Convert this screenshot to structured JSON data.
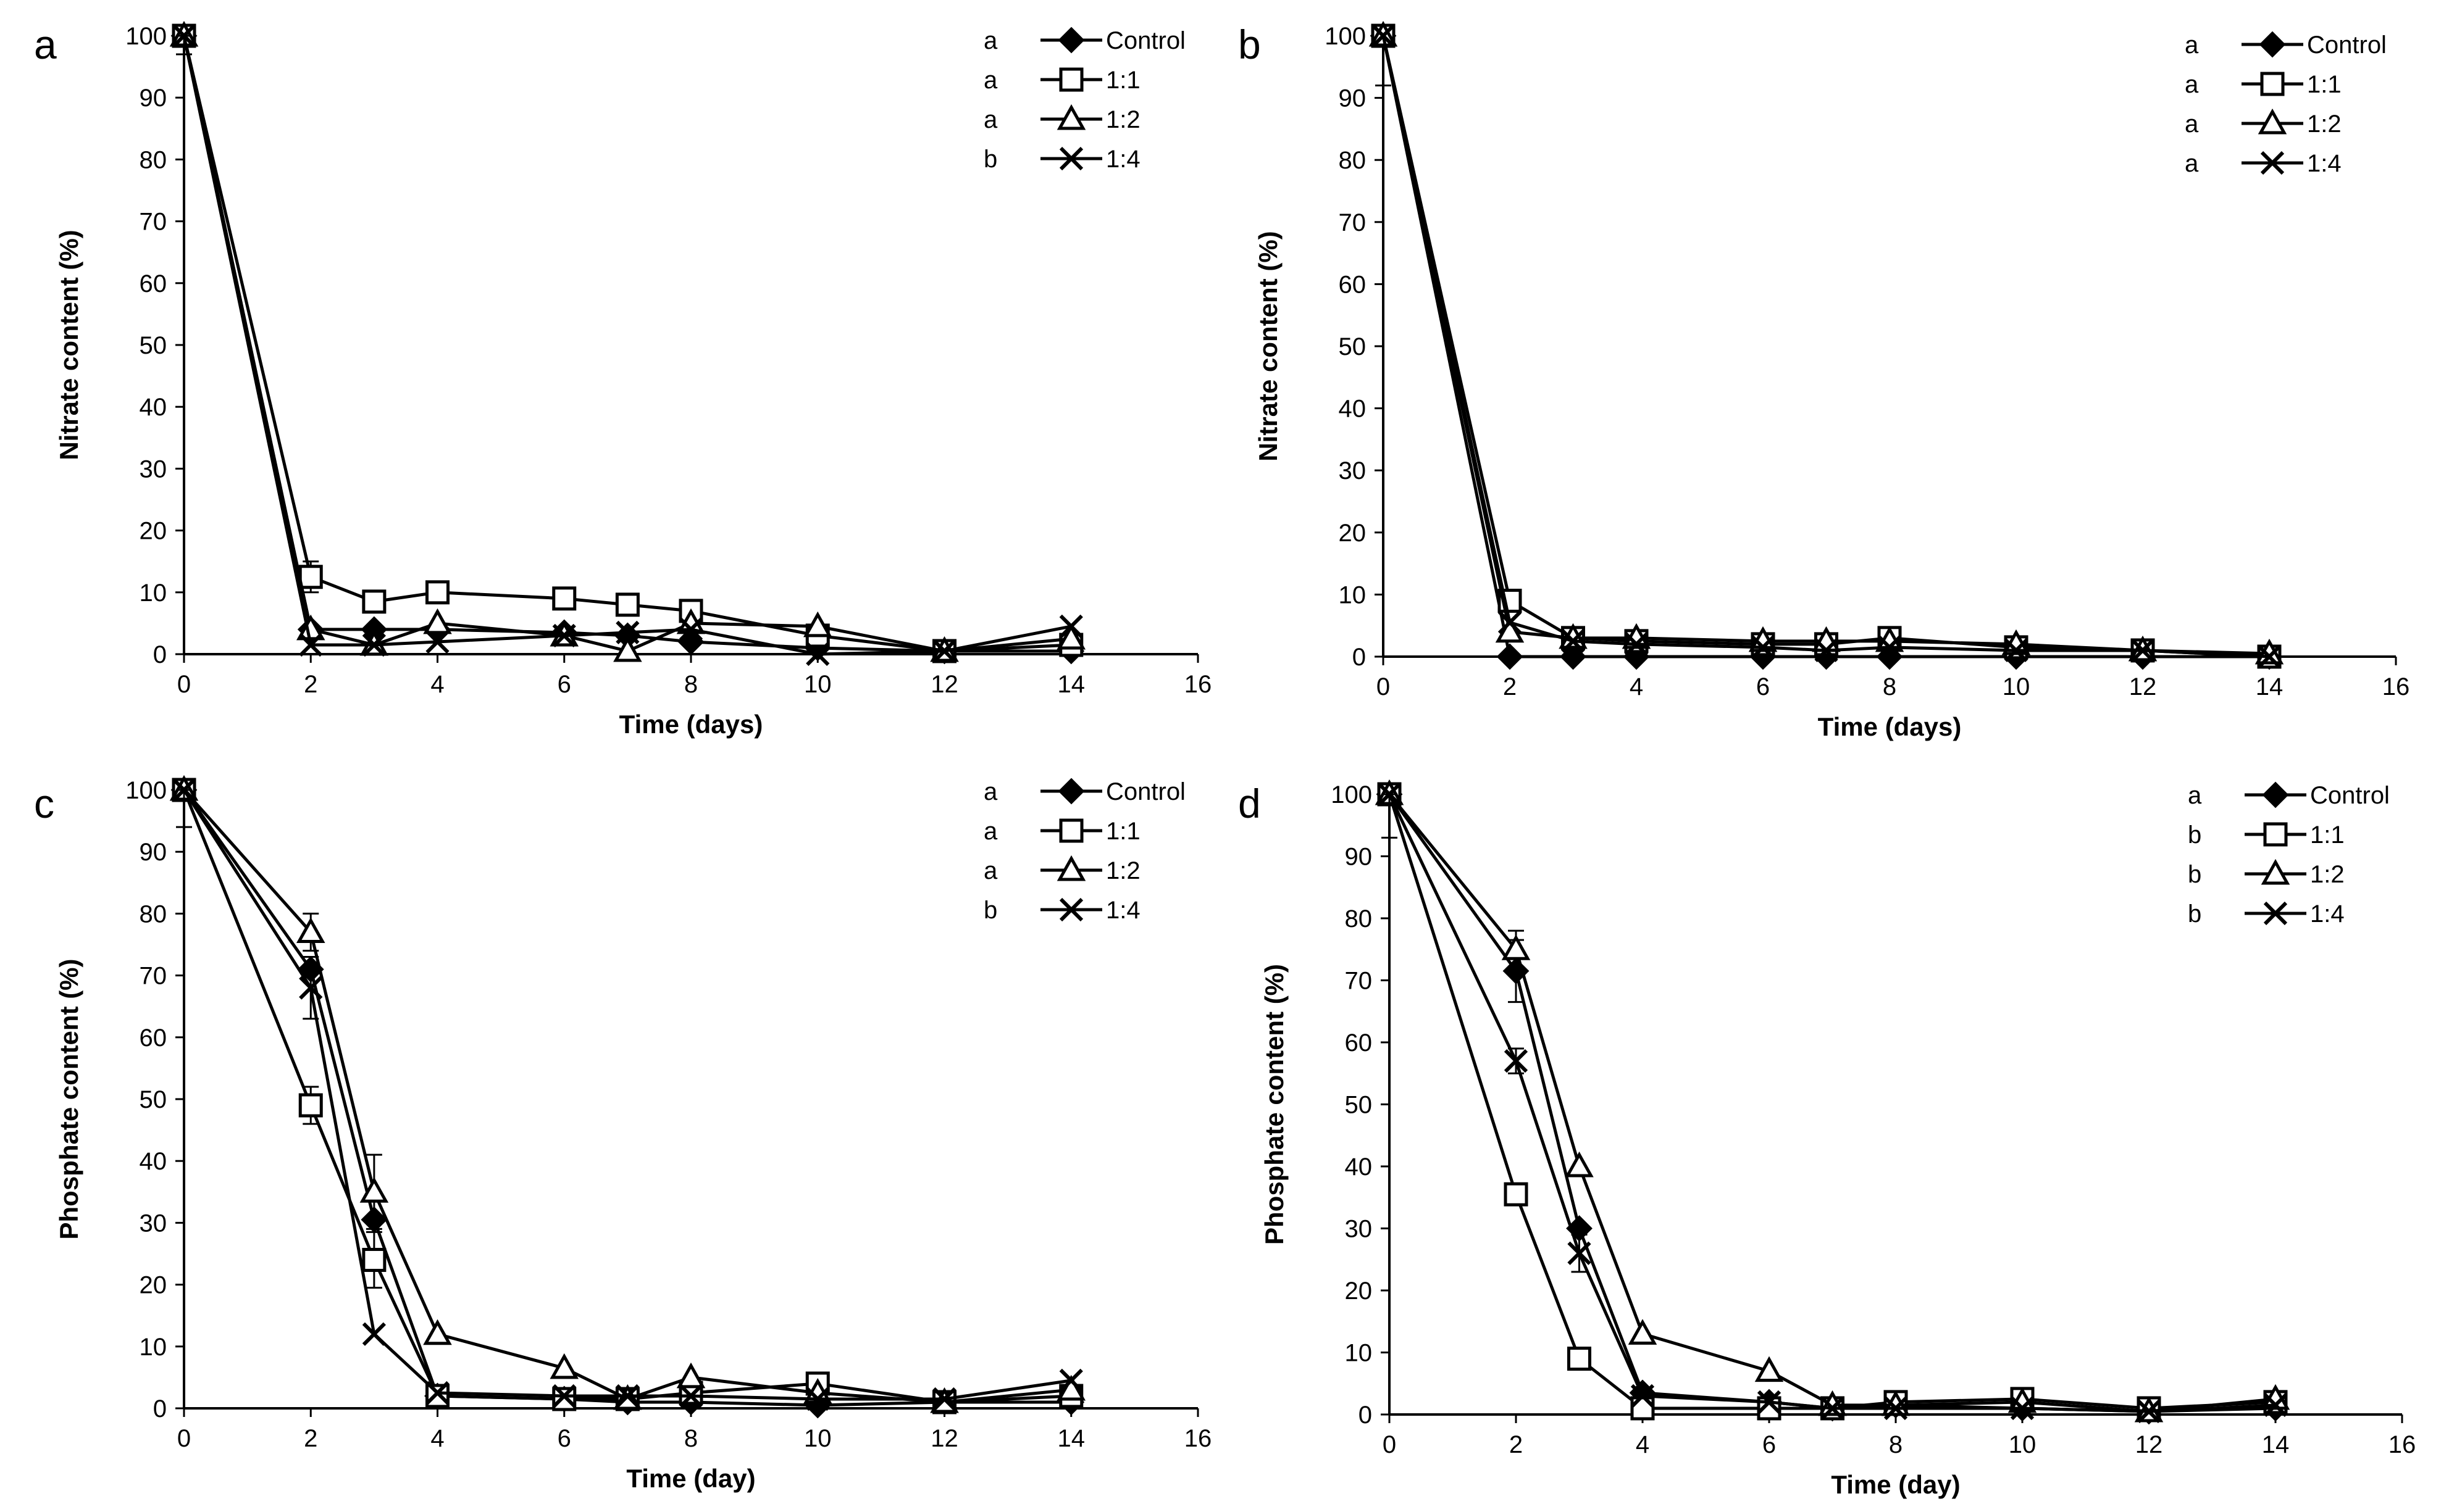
{
  "chart_data": [
    {
      "type": "line",
      "panel": "a",
      "xlabel": "Time (days)",
      "ylabel": "Nitrate content (%)",
      "xlim": [
        0,
        16
      ],
      "ylim": [
        0,
        100
      ],
      "xticks": [
        0,
        2,
        4,
        6,
        8,
        10,
        12,
        14,
        16
      ],
      "yticks": [
        0,
        10,
        20,
        30,
        40,
        50,
        60,
        70,
        80,
        90,
        100
      ],
      "grid": false,
      "legend_position": "top-right",
      "series": [
        {
          "name": "Control",
          "sig": "a",
          "marker": "diamond",
          "x": [
            0,
            2,
            3,
            4,
            6,
            7,
            8,
            10,
            12,
            14
          ],
          "y": [
            100,
            4,
            4,
            4,
            3.5,
            3,
            2,
            1,
            0.5,
            0.5
          ],
          "err": [
            0,
            0,
            0,
            0,
            0,
            0,
            0,
            0,
            0,
            0
          ]
        },
        {
          "name": "1:1",
          "sig": "a",
          "marker": "square",
          "x": [
            0,
            2,
            3,
            4,
            6,
            7,
            8,
            10,
            12,
            14
          ],
          "y": [
            100,
            12.5,
            8.5,
            10,
            9,
            8,
            7,
            3,
            0.5,
            1.5
          ],
          "err": [
            0,
            2.5,
            0,
            0,
            0,
            0,
            0,
            0,
            0,
            0
          ]
        },
        {
          "name": "1:2",
          "sig": "a",
          "marker": "triangle",
          "x": [
            0,
            2,
            3,
            4,
            6,
            7,
            8,
            10,
            12,
            14
          ],
          "y": [
            100,
            4,
            1.5,
            5,
            3,
            0.5,
            5,
            4.5,
            0.5,
            2.5
          ],
          "err": [
            0,
            0,
            0,
            0,
            0,
            0,
            0,
            0,
            0,
            0
          ]
        },
        {
          "name": "1:4",
          "sig": "b",
          "marker": "x",
          "x": [
            0,
            2,
            3,
            4,
            6,
            7,
            8,
            10,
            12,
            14
          ],
          "y": [
            100,
            1.5,
            1.5,
            2,
            3,
            3.5,
            4,
            0,
            0.5,
            4.5
          ],
          "err": [
            3,
            0,
            0,
            0,
            0,
            0,
            0,
            0,
            0,
            0
          ]
        }
      ]
    },
    {
      "type": "line",
      "panel": "b",
      "xlabel": "Time (days)",
      "ylabel": "Nitrate content (%)",
      "xlim": [
        0,
        16
      ],
      "ylim": [
        0,
        100
      ],
      "xticks": [
        0,
        2,
        4,
        6,
        8,
        10,
        12,
        14,
        16
      ],
      "yticks": [
        0,
        10,
        20,
        30,
        40,
        50,
        60,
        70,
        80,
        90,
        100
      ],
      "grid": false,
      "legend_position": "top-right",
      "series": [
        {
          "name": "Control",
          "sig": "a",
          "marker": "diamond",
          "x": [
            0,
            2,
            3,
            4,
            6,
            7,
            8,
            10,
            12,
            14
          ],
          "y": [
            100,
            0,
            0,
            0,
            0,
            0,
            0,
            0,
            0,
            0
          ],
          "err": [
            0,
            0,
            0,
            0,
            0,
            0,
            0,
            0,
            0,
            0
          ]
        },
        {
          "name": "1:1",
          "sig": "a",
          "marker": "square",
          "x": [
            0,
            2,
            3,
            4,
            6,
            7,
            8,
            10,
            12,
            14
          ],
          "y": [
            100,
            9,
            3,
            2.5,
            2,
            2,
            3,
            1.5,
            1,
            0
          ],
          "err": [
            8,
            0,
            0,
            0,
            0,
            0,
            0,
            0,
            0,
            0
          ]
        },
        {
          "name": "1:2",
          "sig": "a",
          "marker": "triangle",
          "x": [
            0,
            2,
            3,
            4,
            6,
            7,
            8,
            10,
            12,
            14
          ],
          "y": [
            100,
            4,
            3,
            3,
            2.5,
            2.5,
            2.5,
            2,
            1,
            0.5
          ],
          "err": [
            0,
            0,
            0,
            0,
            0,
            0,
            0,
            0,
            0,
            0
          ]
        },
        {
          "name": "1:4",
          "sig": "a",
          "marker": "x",
          "x": [
            0,
            2,
            3,
            4,
            6,
            7,
            8,
            10,
            12,
            14
          ],
          "y": [
            100,
            5.5,
            2.5,
            2,
            1.5,
            1,
            1.5,
            1,
            1,
            0
          ],
          "err": [
            0,
            0,
            0,
            0,
            0,
            0,
            0,
            0,
            0,
            0
          ]
        }
      ]
    },
    {
      "type": "line",
      "panel": "c",
      "xlabel": "Time (day)",
      "ylabel": "Phosphate content (%)",
      "xlim": [
        0,
        16
      ],
      "ylim": [
        0,
        100
      ],
      "xticks": [
        0,
        2,
        4,
        6,
        8,
        10,
        12,
        14,
        16
      ],
      "yticks": [
        0,
        10,
        20,
        30,
        40,
        50,
        60,
        70,
        80,
        90,
        100
      ],
      "grid": false,
      "legend_position": "top-right",
      "series": [
        {
          "name": "Control",
          "sig": "a",
          "marker": "diamond",
          "x": [
            0,
            2,
            3,
            4,
            6,
            7,
            8,
            10,
            12,
            14
          ],
          "y": [
            100,
            71,
            30.5,
            2,
            1.5,
            1,
            1,
            0.5,
            1,
            1
          ],
          "err": [
            0,
            0,
            0,
            0,
            0,
            0,
            0,
            0,
            0,
            0
          ]
        },
        {
          "name": "1:1",
          "sig": "a",
          "marker": "square",
          "x": [
            0,
            2,
            3,
            4,
            6,
            7,
            8,
            10,
            12,
            14
          ],
          "y": [
            100,
            49,
            24,
            2,
            1.5,
            1.5,
            2.5,
            4,
            1,
            2
          ],
          "err": [
            0,
            3,
            4.5,
            0,
            0,
            0,
            0,
            0,
            0,
            0
          ]
        },
        {
          "name": "1:2",
          "sig": "a",
          "marker": "triangle",
          "x": [
            0,
            2,
            3,
            4,
            6,
            7,
            8,
            10,
            12,
            14
          ],
          "y": [
            100,
            77,
            35,
            12,
            6.5,
            1.5,
            5,
            2.5,
            1,
            3
          ],
          "err": [
            0,
            3,
            6,
            0,
            0,
            0,
            0,
            0,
            0,
            0
          ]
        },
        {
          "name": "1:4",
          "sig": "b",
          "marker": "x",
          "x": [
            0,
            2,
            3,
            4,
            6,
            7,
            8,
            10,
            12,
            14
          ],
          "y": [
            100,
            68,
            12,
            2.5,
            2,
            2,
            2,
            1.5,
            1.5,
            4.5
          ],
          "err": [
            6,
            5,
            0,
            0,
            0,
            0,
            0,
            0,
            0,
            0
          ]
        }
      ]
    },
    {
      "type": "line",
      "panel": "d",
      "xlabel": "Time (day)",
      "ylabel": "Phosphate content (%)",
      "xlim": [
        0,
        16
      ],
      "ylim": [
        0,
        100
      ],
      "xticks": [
        0,
        2,
        4,
        6,
        8,
        10,
        12,
        14,
        16
      ],
      "yticks": [
        0,
        10,
        20,
        30,
        40,
        50,
        60,
        70,
        80,
        90,
        100
      ],
      "grid": false,
      "legend_position": "top-right",
      "series": [
        {
          "name": "Control",
          "sig": "a",
          "marker": "diamond",
          "x": [
            0,
            2,
            3,
            4,
            6,
            7,
            8,
            10,
            12,
            14
          ],
          "y": [
            100,
            71.5,
            30,
            3.5,
            2,
            1,
            1.5,
            1,
            0.5,
            1
          ],
          "err": [
            0,
            5,
            0,
            0,
            0,
            0,
            0,
            0,
            0,
            0
          ]
        },
        {
          "name": "1:1",
          "sig": "b",
          "marker": "square",
          "x": [
            0,
            2,
            3,
            4,
            6,
            7,
            8,
            10,
            12,
            14
          ],
          "y": [
            100,
            35.5,
            9,
            1,
            1,
            1,
            2,
            2.5,
            1,
            2
          ],
          "err": [
            0,
            1.5,
            0,
            0,
            0,
            0,
            0,
            0,
            0,
            0
          ]
        },
        {
          "name": "1:2",
          "sig": "b",
          "marker": "triangle",
          "x": [
            0,
            2,
            3,
            4,
            6,
            7,
            8,
            10,
            12,
            14
          ],
          "y": [
            100,
            75,
            40,
            13,
            7,
            1.5,
            1.5,
            2,
            0.5,
            2.5
          ],
          "err": [
            0,
            3,
            0,
            0,
            0,
            0,
            0,
            0,
            0,
            0
          ]
        },
        {
          "name": "1:4",
          "sig": "b",
          "marker": "x",
          "x": [
            0,
            2,
            3,
            4,
            6,
            7,
            8,
            10,
            12,
            14
          ],
          "y": [
            100,
            57,
            26,
            3,
            2,
            1,
            1,
            1,
            0.5,
            1.5
          ],
          "err": [
            7,
            2,
            3,
            0,
            0,
            0,
            0,
            0,
            0,
            0
          ]
        }
      ]
    }
  ]
}
